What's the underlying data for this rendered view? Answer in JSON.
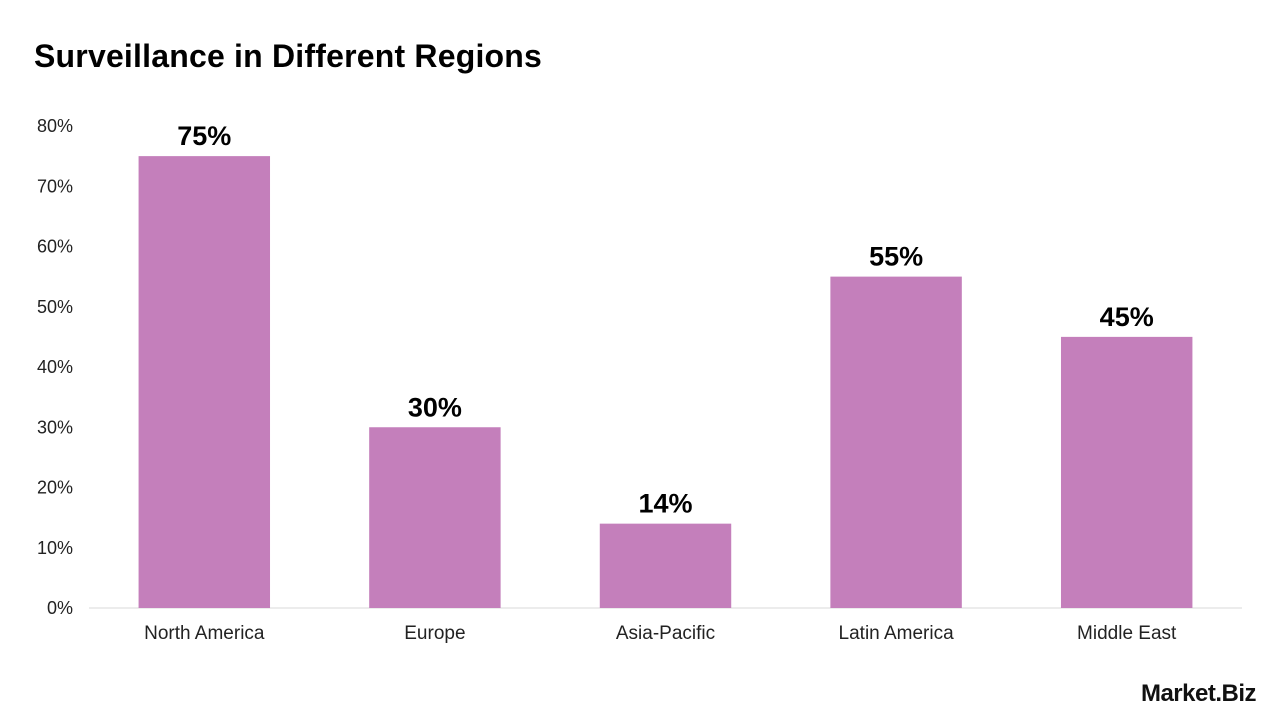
{
  "chart_data": {
    "type": "bar",
    "title": "Surveillance in Different Regions",
    "categories": [
      "North America",
      "Europe",
      "Asia-Pacific",
      "Latin America",
      "Middle East"
    ],
    "values": [
      75,
      30,
      14,
      55,
      45
    ],
    "data_labels": [
      "75%",
      "30%",
      "14%",
      "55%",
      "45%"
    ],
    "ylim": [
      0,
      80
    ],
    "yticks": [
      "0%",
      "10%",
      "20%",
      "30%",
      "40%",
      "50%",
      "60%",
      "70%",
      "80%"
    ],
    "xlabel": "",
    "ylabel": "",
    "grid": false,
    "bar_color": "#c47fbb"
  },
  "branding": {
    "logo_text": "Market.Biz"
  }
}
